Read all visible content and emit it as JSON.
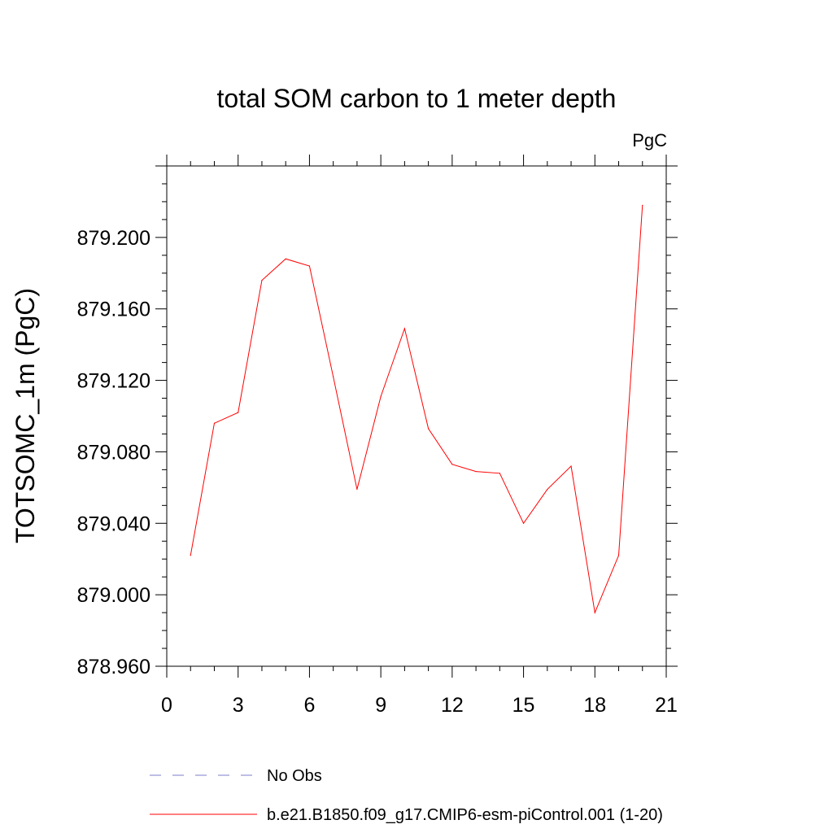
{
  "chart_data": {
    "type": "line",
    "title": "total SOM carbon to 1 meter depth",
    "units": "PgC",
    "xlabel": "",
    "ylabel": "TOTSOMC_1m  (PgC)",
    "xlim": [
      0,
      21
    ],
    "ylim": [
      878.96,
      879.24
    ],
    "xticks": [
      "0",
      "3",
      "6",
      "9",
      "12",
      "15",
      "18",
      "21"
    ],
    "yticks": [
      "878.960",
      "879.000",
      "879.040",
      "879.080",
      "879.120",
      "879.160",
      "879.200"
    ],
    "grid": false,
    "legend_position": "bottom-left",
    "series": [
      {
        "name": "b.e21.B1850.f09_g17.CMIP6-esm-piControl.001 (1-20)",
        "color": "#ff0000",
        "style": "solid",
        "x": [
          1,
          2,
          3,
          4,
          5,
          6,
          7,
          8,
          9,
          10,
          11,
          12,
          13,
          14,
          15,
          16,
          17,
          18,
          19,
          20
        ],
        "values": [
          879.022,
          879.096,
          879.102,
          879.176,
          879.188,
          879.184,
          879.122,
          879.059,
          879.111,
          879.149,
          879.093,
          879.073,
          879.069,
          879.068,
          879.04,
          879.059,
          879.072,
          878.99,
          879.022,
          879.218
        ]
      }
    ],
    "legend": [
      {
        "label": "No Obs",
        "color": "#7b7bcc",
        "style": "dashed"
      },
      {
        "label": "b.e21.B1850.f09_g17.CMIP6-esm-piControl.001 (1-20)",
        "color": "#ff0000",
        "style": "solid"
      }
    ]
  }
}
